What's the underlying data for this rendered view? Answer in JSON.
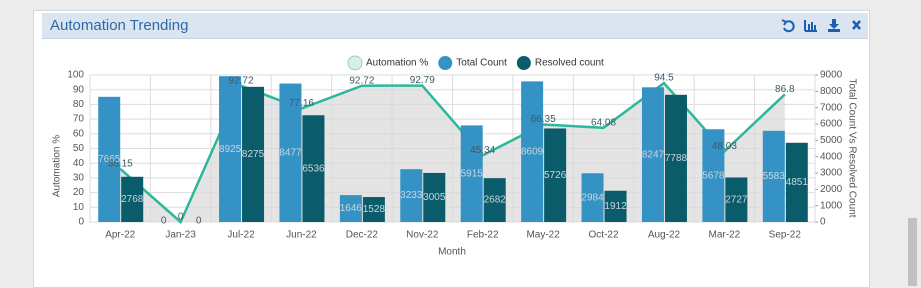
{
  "chart_data": {
    "type": "bar",
    "title": "Automation Trending",
    "x_label": "Month",
    "y_label": "Automation %",
    "y2_label": "Total Count Vs Resolved Count",
    "categories": [
      "Apr-22",
      "Jan-23",
      "Jul-22",
      "Jun-22",
      "Dec-22",
      "Nov-22",
      "Feb-22",
      "May-22",
      "Oct-22",
      "Aug-22",
      "Mar-22",
      "Sep-22"
    ],
    "series": [
      {
        "name": "Automation %",
        "type": "line",
        "color": "#2bb89b",
        "values": [
          36.15,
          0,
          92.72,
          77.16,
          92.72,
          92.79,
          45.34,
          66.35,
          64.08,
          94.5,
          48.03,
          86.8
        ]
      },
      {
        "name": "Total Count",
        "color": "#3592c4",
        "axis": "y2",
        "values": [
          7665,
          0,
          8925,
          8477,
          1646,
          3233,
          5915,
          8609,
          2984,
          8247,
          5678,
          5583
        ]
      },
      {
        "name": "Resolved count",
        "color": "#0b5c6a",
        "axis": "y2",
        "values": [
          2768,
          0,
          8275,
          6536,
          1528,
          3005,
          2682,
          5726,
          1912,
          7788,
          2727,
          4851
        ]
      }
    ],
    "ylim": [
      0,
      100
    ],
    "yticks": [
      0,
      10,
      20,
      30,
      40,
      50,
      60,
      70,
      80,
      90,
      100
    ],
    "y2lim": [
      0,
      9000
    ],
    "y2ticks": [
      0,
      1000,
      2000,
      3000,
      4000,
      5000,
      6000,
      7000,
      8000,
      9000
    ],
    "grid": true
  }
}
